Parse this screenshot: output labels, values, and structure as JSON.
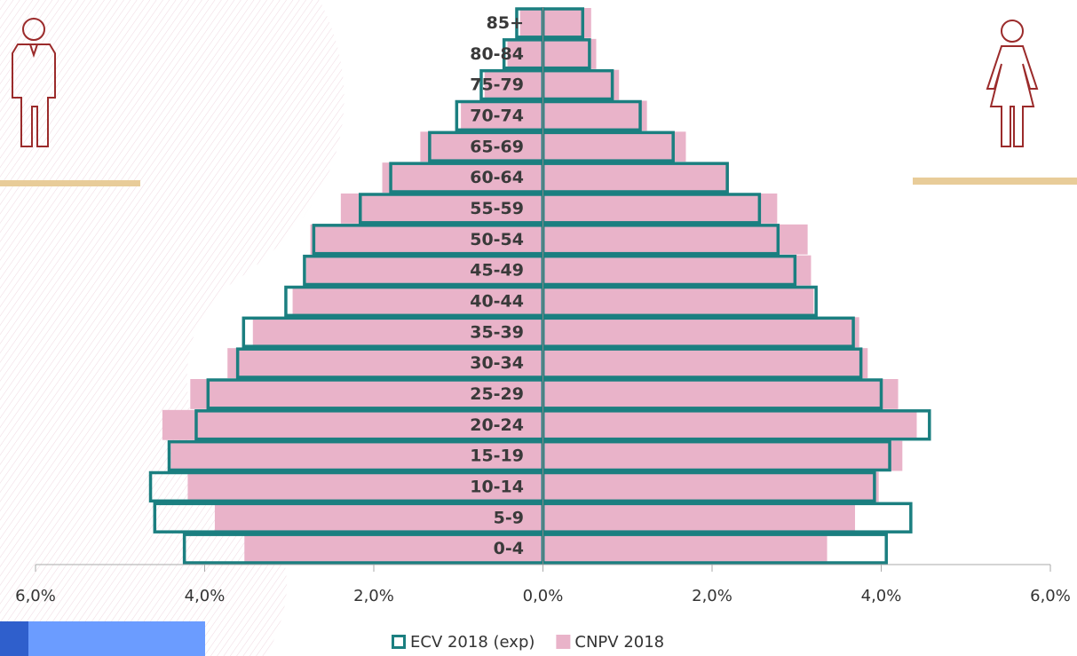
{
  "chart_data": {
    "type": "pyramid",
    "categories": [
      "85+",
      "80-84",
      "75-79",
      "70-74",
      "65-69",
      "60-64",
      "55-59",
      "50-54",
      "45-49",
      "40-44",
      "35-39",
      "30-34",
      "25-29",
      "20-24",
      "15-19",
      "10-14",
      "5-9",
      "0-4"
    ],
    "series": [
      {
        "name": "CNPV 2018",
        "color": "#e9b3c9",
        "style": "fill",
        "male": [
          -0.27,
          -0.42,
          -0.69,
          -0.97,
          -1.45,
          -1.9,
          -2.39,
          -2.75,
          -2.8,
          -2.96,
          -3.43,
          -3.73,
          -4.17,
          -4.5,
          -4.4,
          -4.2,
          -3.88,
          -3.53
        ],
        "female": [
          0.57,
          0.63,
          0.9,
          1.23,
          1.69,
          2.2,
          2.77,
          3.13,
          3.17,
          3.2,
          3.74,
          3.84,
          4.2,
          4.42,
          4.25,
          3.97,
          3.69,
          3.36
        ]
      },
      {
        "name": "ECV 2018 (exp)",
        "color": "#1b7f80",
        "style": "outline",
        "male": [
          -0.31,
          -0.46,
          -0.73,
          -1.02,
          -1.34,
          -1.8,
          -2.16,
          -2.71,
          -2.82,
          -3.04,
          -3.54,
          -3.61,
          -3.96,
          -4.1,
          -4.42,
          -4.64,
          -4.59,
          -4.24
        ],
        "female": [
          0.47,
          0.55,
          0.82,
          1.15,
          1.54,
          2.18,
          2.56,
          2.78,
          2.98,
          3.23,
          3.67,
          3.76,
          4.0,
          4.57,
          4.1,
          3.92,
          4.35,
          4.06
        ]
      }
    ],
    "legend_order": [
      1,
      0
    ],
    "xlim": [
      -6,
      6
    ],
    "xticks": [
      {
        "value": -6,
        "label": "6,0%"
      },
      {
        "value": -4,
        "label": "4,0%"
      },
      {
        "value": -2,
        "label": "2,0%"
      },
      {
        "value": 0,
        "label": "0,0%"
      },
      {
        "value": 2,
        "label": "2,0%"
      },
      {
        "value": 4,
        "label": "4,0%"
      },
      {
        "value": 6,
        "label": "6,0%"
      }
    ]
  }
}
